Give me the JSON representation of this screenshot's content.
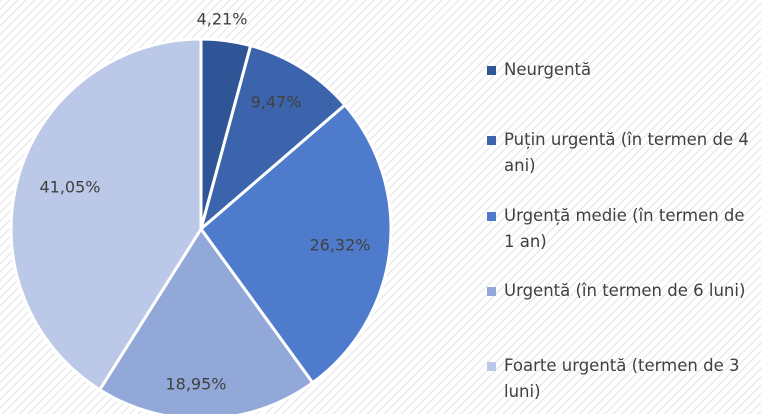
{
  "chart_data": {
    "type": "pie",
    "categories": [
      "Neurgentă",
      "Puțin urgentă (în termen de 4 ani)",
      "Urgență medie (în termen de 1 an)",
      "Urgentă (în termen de 6 luni)",
      "Foarte urgentă (termen de 3 luni)"
    ],
    "values": [
      4.21,
      9.47,
      26.32,
      18.95,
      41.05
    ],
    "value_labels": [
      "4,21%",
      "9,47%",
      "26,32%",
      "18,95%",
      "41,05%"
    ],
    "colors": [
      "#2f5597",
      "#3c64ad",
      "#4f7bcc",
      "#92a8d8",
      "#bcc8e8"
    ],
    "legend": "right"
  }
}
